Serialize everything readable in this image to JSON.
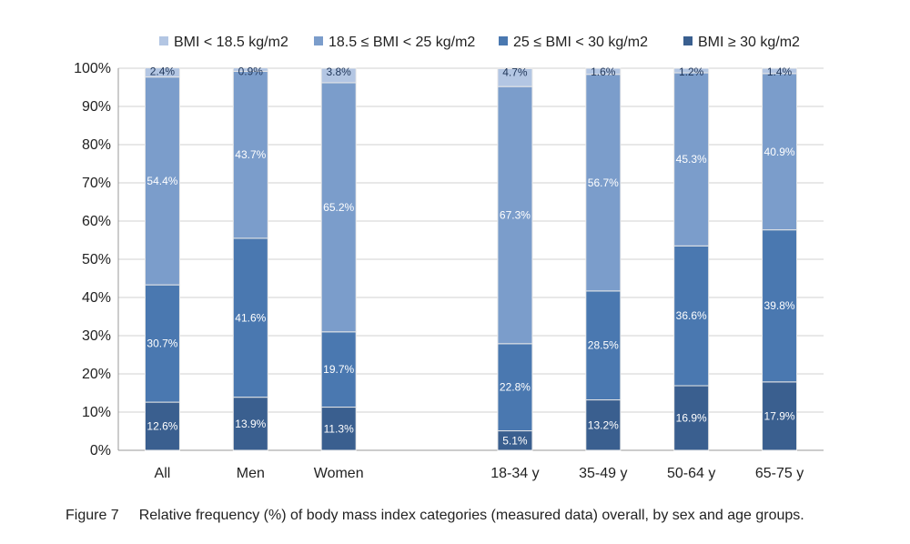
{
  "chart_data": {
    "type": "bar",
    "stacked": true,
    "categories": [
      "All",
      "Men",
      "Women",
      "",
      "18-34 y",
      "35-49 y",
      "50-64 y",
      "65-75 y"
    ],
    "series": [
      {
        "name": "BMI ≥ 30 kg/m2",
        "color": "#3a5f8f",
        "values": [
          12.6,
          13.9,
          11.3,
          null,
          5.1,
          13.2,
          16.9,
          17.9
        ],
        "labels": [
          "12.6%",
          "13.9%",
          "11.3%",
          "",
          "5.1%",
          "13.2%",
          "16.9%",
          "17.9%"
        ]
      },
      {
        "name": "25 ≤ BMI < 30 kg/m2",
        "color": "#4a78b0",
        "values": [
          30.7,
          41.6,
          19.7,
          null,
          22.8,
          28.5,
          36.6,
          39.8
        ],
        "labels": [
          "30.7%",
          "41.6%",
          "19.7%",
          "",
          "22.8%",
          "28.5%",
          "36.6%",
          "39.8%"
        ]
      },
      {
        "name": "18.5 ≤ BMI < 25 kg/m2",
        "color": "#7b9dcb",
        "values": [
          54.4,
          43.7,
          65.2,
          null,
          67.3,
          56.7,
          45.3,
          40.9
        ],
        "labels": [
          "54.4%",
          "43.7%",
          "65.2%",
          "",
          "67.3%",
          "56.7%",
          "45.3%",
          "40.9%"
        ]
      },
      {
        "name": "BMI < 18.5 kg/m2",
        "color": "#b3c6e3",
        "values": [
          2.4,
          0.9,
          3.8,
          null,
          4.7,
          1.6,
          1.2,
          1.4
        ],
        "labels": [
          "2.4%",
          "0.9%",
          "3.8%",
          "",
          "4.7%",
          "1.6%",
          "1.2%",
          "1.4%"
        ]
      }
    ],
    "legend_order": [
      3,
      2,
      1,
      0
    ],
    "legend_position": "top",
    "ylim": [
      0,
      100
    ],
    "yticks": [
      "0%",
      "10%",
      "20%",
      "30%",
      "40%",
      "50%",
      "60%",
      "70%",
      "80%",
      "90%",
      "100%"
    ],
    "grid": true
  },
  "caption": {
    "number": "Figure 7",
    "text": "Relative frequency (%) of body mass index categories (measured data) overall, by sex and age groups."
  }
}
